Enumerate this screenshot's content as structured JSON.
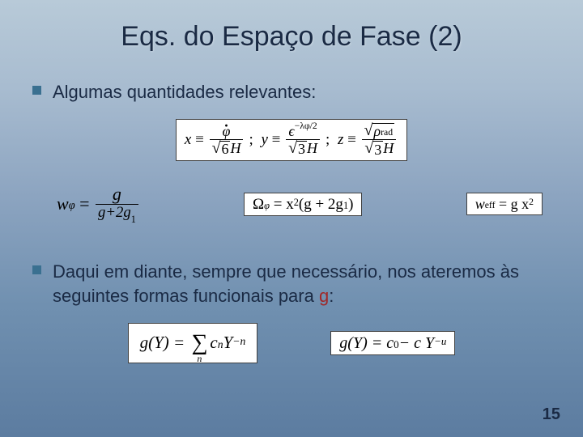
{
  "slide": {
    "title": "Eqs. do Espaço de Fase  (2)",
    "page_number": "15",
    "background_gradient": [
      "#b8cad8",
      "#5c7ca0"
    ],
    "accent_color": "#a02828",
    "bullet_color": "#3a7090",
    "text_color": "#1a2a44"
  },
  "bullets": {
    "b1": "Algumas quantidades relevantes:",
    "b2_pre": "Daqui em diante, sempre que necessário, nos ateremos às seguintes formas funcionais para ",
    "b2_g": "g",
    "b2_post": ":"
  },
  "equations": {
    "defs": {
      "x_lhs": "x",
      "x_num_var": "φ",
      "x_den_coef": "6",
      "x_den_var": "H",
      "y_lhs": "y",
      "y_num_base": "ϵ",
      "y_num_exp": "−λφ/2",
      "y_den_coef": "3",
      "y_den_var": "H",
      "z_lhs": "z",
      "z_num_inner": "ρ",
      "z_num_inner_sub": "rad",
      "z_den_coef": "3",
      "z_den_var": "H",
      "equiv": "≡",
      "sep": ";"
    },
    "row2": {
      "w_lhs_base": "w",
      "w_lhs_sub": "φ",
      "w_num": "g",
      "w_den": "g+2g",
      "w_den_sub": "1",
      "omega_lhs": "Ω",
      "omega_lhs_sub": "φ",
      "omega_rhs_pre": "= x",
      "omega_rhs_exp": "2",
      "omega_rhs_post": "(g + 2g",
      "omega_rhs_sub": "1",
      "omega_rhs_close": ")",
      "weff_lhs": "w",
      "weff_sub": "eff",
      "weff_rhs_pre": "= g x",
      "weff_rhs_exp": "2"
    },
    "row3": {
      "g1_lhs": "g(Y) =",
      "g1_sum_sub": "n",
      "g1_coef": "c",
      "g1_coef_sub": "n",
      "g1_base": " Y",
      "g1_exp": "−n",
      "g2_lhs": "g(Y) = c",
      "g2_c0_sub": "0",
      "g2_mid": " − c Y",
      "g2_exp": "−u"
    }
  }
}
